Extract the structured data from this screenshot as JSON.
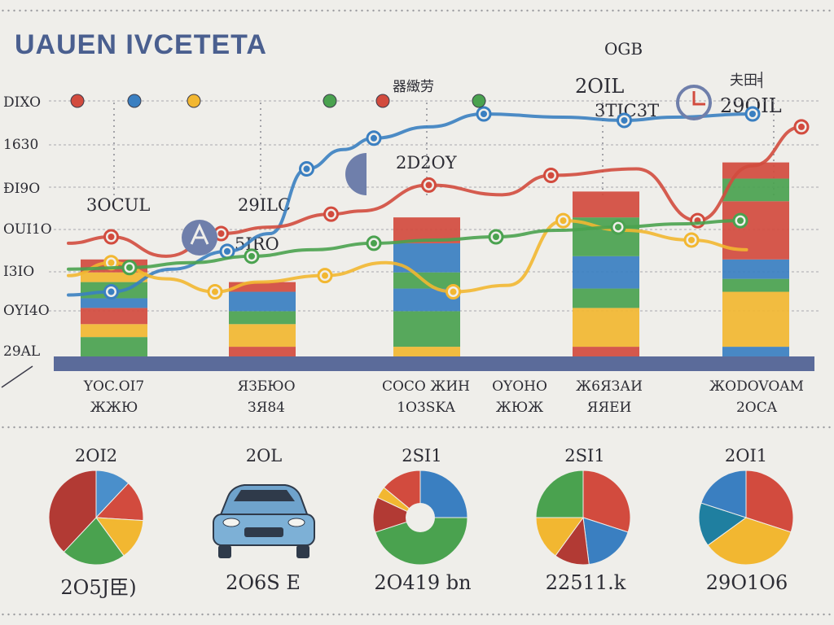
{
  "header": {
    "title": "UAUEN IVCETETA",
    "top_label_right": "OGB",
    "top_label_center": "器緻劳",
    "top_label_far_right": "夫田╡"
  },
  "annotations": [
    {
      "text": "3OCUL"
    },
    {
      "text": "29ILC"
    },
    {
      "text": "5IRO"
    },
    {
      "text": "2D2OY"
    },
    {
      "text": "2OIL"
    },
    {
      "text": "3TIC3T"
    },
    {
      "text": "29OIL"
    }
  ],
  "legend_dot_colors": [
    "#d24b3e",
    "#3a7fc1",
    "#f2b731",
    "#4aa24f",
    "#d24b3e",
    "#4aa24f"
  ],
  "chart_data": {
    "type": "bar",
    "title": "UAUEN IVCETETA",
    "xlabel": "",
    "ylabel": "",
    "y_tick_labels": [
      "DIXO",
      "1630",
      "ĐI9O",
      "OUI1O",
      "I3IO",
      "OYI4O",
      "29AL"
    ],
    "categories": [
      [
        "YOC.OI7",
        "ЖЖЮ"
      ],
      [
        "ЯЗБЮО",
        "ЗЯ84"
      ],
      [
        "COCO ЖИH",
        "1O3SKA"
      ],
      [
        "OYOHO",
        "ЖЮЖ"
      ],
      [
        "Ж6ЯЗАИ",
        "ЯЯЕИ"
      ],
      [
        "ЖОDOVOAM",
        "2OCA"
      ]
    ],
    "stacked_bars": [
      {
        "category_index": 0,
        "segments": [
          {
            "color": "#4aa24f",
            "value": 12
          },
          {
            "color": "#f2b731",
            "value": 8
          },
          {
            "color": "#d24b3e",
            "value": 10
          },
          {
            "color": "#3a7fc1",
            "value": 6
          },
          {
            "color": "#4aa24f",
            "value": 10
          },
          {
            "color": "#f2b731",
            "value": 6
          },
          {
            "color": "#d24b3e",
            "value": 8
          }
        ]
      },
      {
        "category_index": 1,
        "segments": [
          {
            "color": "#d24b3e",
            "value": 6
          },
          {
            "color": "#f2b731",
            "value": 14
          },
          {
            "color": "#4aa24f",
            "value": 8
          },
          {
            "color": "#3a7fc1",
            "value": 12
          },
          {
            "color": "#d24b3e",
            "value": 6
          }
        ]
      },
      {
        "category_index": 2,
        "segments": [
          {
            "color": "#f2b731",
            "value": 6
          },
          {
            "color": "#4aa24f",
            "value": 22
          },
          {
            "color": "#3a7fc1",
            "value": 14
          },
          {
            "color": "#4aa24f",
            "value": 10
          },
          {
            "color": "#3a7fc1",
            "value": 18
          },
          {
            "color": "#d24b3e",
            "value": 16
          }
        ]
      },
      {
        "category_index": 4,
        "segments": [
          {
            "color": "#d24b3e",
            "value": 6
          },
          {
            "color": "#f2b731",
            "value": 24
          },
          {
            "color": "#4aa24f",
            "value": 12
          },
          {
            "color": "#3a7fc1",
            "value": 20
          },
          {
            "color": "#4aa24f",
            "value": 24
          },
          {
            "color": "#d24b3e",
            "value": 16
          }
        ]
      },
      {
        "category_index": 5,
        "segments": [
          {
            "color": "#3a7fc1",
            "value": 6
          },
          {
            "color": "#f2b731",
            "value": 34
          },
          {
            "color": "#4aa24f",
            "value": 8
          },
          {
            "color": "#3a7fc1",
            "value": 12
          },
          {
            "color": "#d24b3e",
            "value": 36
          },
          {
            "color": "#4aa24f",
            "value": 14
          },
          {
            "color": "#d24b3e",
            "value": 10
          }
        ]
      }
    ],
    "ylim": [
      0,
      150
    ],
    "x_positions": [
      0,
      1,
      2,
      3,
      4,
      5
    ],
    "lines": [
      {
        "color": "#3a7fc1",
        "points": [
          [
            0,
            38
          ],
          [
            0.7,
            40
          ],
          [
            1.7,
            54
          ],
          [
            2.6,
            65
          ],
          [
            3.3,
            76
          ],
          [
            3.9,
            116
          ],
          [
            4.5,
            128
          ],
          [
            5,
            135
          ],
          [
            5.9,
            142
          ],
          [
            6.8,
            150
          ],
          [
            8.1,
            148
          ],
          [
            9.1,
            146
          ],
          [
            9.9,
            148
          ],
          [
            11.2,
            150
          ]
        ]
      },
      {
        "color": "#d24b3e",
        "points": [
          [
            0,
            70
          ],
          [
            0.7,
            74
          ],
          [
            1.6,
            62
          ],
          [
            2.5,
            76
          ],
          [
            3.3,
            80
          ],
          [
            4.3,
            88
          ],
          [
            4.8,
            90
          ],
          [
            5.9,
            106
          ],
          [
            7.1,
            100
          ],
          [
            7.9,
            112
          ],
          [
            9.3,
            116
          ],
          [
            10.3,
            84
          ],
          [
            11.2,
            118
          ],
          [
            12,
            142
          ]
        ]
      },
      {
        "color": "#f2b731",
        "points": [
          [
            0,
            50
          ],
          [
            0.7,
            58
          ],
          [
            1.6,
            48
          ],
          [
            2.4,
            40
          ],
          [
            3.1,
            46
          ],
          [
            4.2,
            50
          ],
          [
            5.2,
            58
          ],
          [
            6.3,
            40
          ],
          [
            7.2,
            44
          ],
          [
            8.1,
            84
          ],
          [
            9.1,
            78
          ],
          [
            10.2,
            72
          ],
          [
            11.1,
            66
          ]
        ]
      },
      {
        "color": "#4aa24f",
        "points": [
          [
            0,
            54
          ],
          [
            1,
            55
          ],
          [
            2,
            58
          ],
          [
            3,
            62
          ],
          [
            4,
            66
          ],
          [
            5,
            70
          ],
          [
            6,
            72
          ],
          [
            7,
            74
          ],
          [
            8,
            78
          ],
          [
            9,
            80
          ],
          [
            10,
            82
          ],
          [
            11,
            84
          ]
        ]
      }
    ]
  },
  "pies": [
    {
      "top_label": "2OI2",
      "bottom_label": "2O5J臣)",
      "slices": [
        {
          "color": "#4a8fcb",
          "value": 12
        },
        {
          "color": "#d24b3e",
          "value": 14
        },
        {
          "color": "#f2b731",
          "value": 14
        },
        {
          "color": "#4aa24f",
          "value": 22
        },
        {
          "color": "#b23a34",
          "value": 38
        }
      ]
    },
    {
      "top_label": "2OL",
      "bottom_label": "2O6S E",
      "slices": []
    },
    {
      "top_label": "2SI1",
      "bottom_label": "2O419 bn",
      "slices": [
        {
          "color": "#3a7fc1",
          "value": 25
        },
        {
          "color": "#4aa24f",
          "value": 45
        },
        {
          "color": "#b23a34",
          "value": 12
        },
        {
          "color": "#f2b731",
          "value": 4
        },
        {
          "color": "#d24b3e",
          "value": 14
        }
      ]
    },
    {
      "top_label": "2SI1",
      "bottom_label": "22511.k",
      "slices": [
        {
          "color": "#d24b3e",
          "value": 30
        },
        {
          "color": "#3a7fc1",
          "value": 18
        },
        {
          "color": "#b23a34",
          "value": 12
        },
        {
          "color": "#f2b731",
          "value": 15
        },
        {
          "color": "#4aa24f",
          "value": 25
        }
      ]
    },
    {
      "top_label": "2OI1",
      "bottom_label": "29O1O6",
      "slices": [
        {
          "color": "#d24b3e",
          "value": 30
        },
        {
          "color": "#f2b731",
          "value": 35
        },
        {
          "color": "#1f7fa0",
          "value": 15
        },
        {
          "color": "#3a7fc1",
          "value": 20
        }
      ]
    }
  ]
}
